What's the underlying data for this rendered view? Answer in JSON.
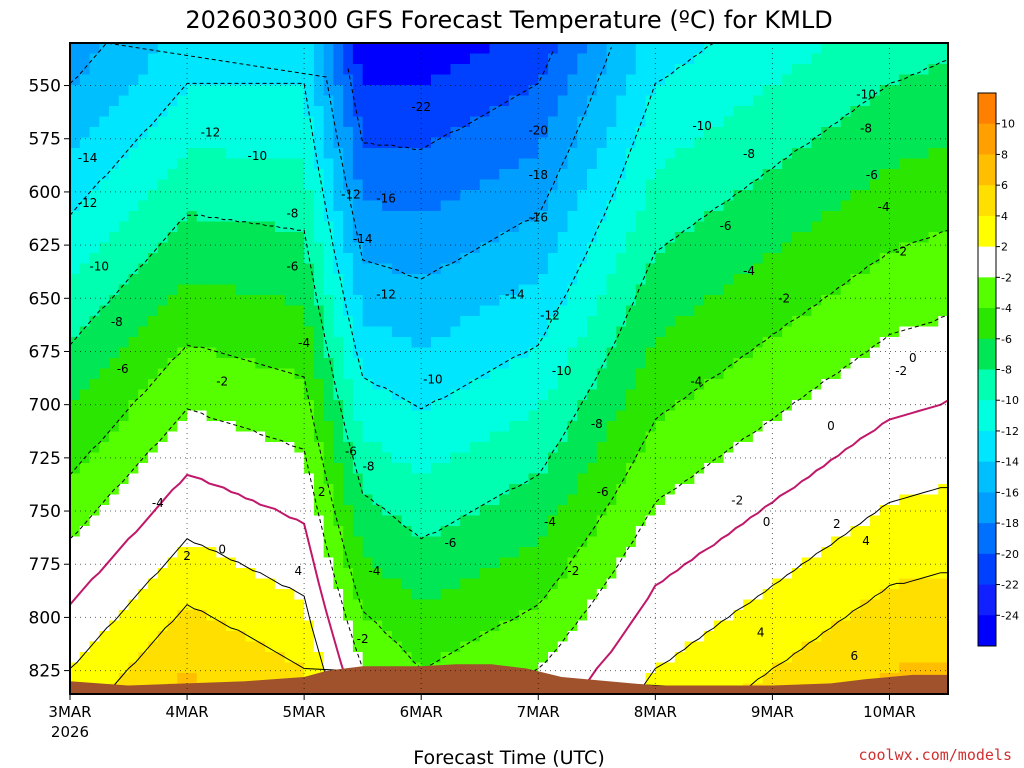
{
  "chart_data": {
    "type": "heatmap",
    "title": "2026030300 GFS Forecast Temperature (ºC) for KMLD",
    "xlabel": "Forecast Time (UTC)",
    "ylabel": "",
    "credit": "coolwx.com/models",
    "x_ticks": [
      "3MAR",
      "4MAR",
      "5MAR",
      "6MAR",
      "7MAR",
      "8MAR",
      "9MAR",
      "10MAR"
    ],
    "x_year": "2026",
    "y_ticks": [
      "550",
      "575",
      "600",
      "625",
      "650",
      "675",
      "700",
      "725",
      "750",
      "775",
      "800",
      "825"
    ],
    "y_values": [
      550,
      575,
      600,
      625,
      650,
      675,
      700,
      725,
      750,
      775,
      800,
      825
    ],
    "ylim": [
      530,
      836
    ],
    "xlim_days": [
      0,
      7.5
    ],
    "colorbar_labels": [
      "10",
      "8",
      "6",
      "4",
      "2",
      "-2",
      "-4",
      "-6",
      "-8",
      "-10",
      "-12",
      "-14",
      "-16",
      "-18",
      "-20",
      "-22",
      "-24"
    ],
    "colorbar_colors": [
      "#ff8000",
      "#ffa000",
      "#ffbf00",
      "#ffdf00",
      "#ffff00",
      "#ffffff",
      "#55ff00",
      "#2ae600",
      "#00e654",
      "#00ffb0",
      "#00ffe0",
      "#00e6ff",
      "#00bfff",
      "#009fff",
      "#0070ff",
      "#0040ff",
      "#1020ff",
      "#0000ff"
    ],
    "temperature_profiles": [
      {
        "x": 0.0,
        "t_550": -16,
        "t_825": 2
      },
      {
        "x": 1.0,
        "t_550": -12,
        "t_825": 6
      },
      {
        "x": 2.0,
        "t_550": -12,
        "t_825": 4
      },
      {
        "x": 2.5,
        "t_550": -22,
        "t_825": -2
      },
      {
        "x": 3.0,
        "t_550": -22,
        "t_825": -4
      },
      {
        "x": 4.0,
        "t_550": -20,
        "t_825": -2
      },
      {
        "x": 5.0,
        "t_550": -12,
        "t_825": 2
      },
      {
        "x": 6.0,
        "t_550": -10,
        "t_825": 4
      },
      {
        "x": 7.0,
        "t_550": -8,
        "t_825": 6
      }
    ],
    "contour_labels": [
      {
        "text": "-10",
        "x": 6.8,
        "y": 556
      },
      {
        "text": "-22",
        "x": 3.0,
        "y": 562
      },
      {
        "text": "-20",
        "x": 4.0,
        "y": 573
      },
      {
        "text": "-12",
        "x": 1.2,
        "y": 574
      },
      {
        "text": "-10",
        "x": 5.4,
        "y": 571
      },
      {
        "text": "-8",
        "x": 6.8,
        "y": 572
      },
      {
        "text": "-8",
        "x": 5.8,
        "y": 584
      },
      {
        "text": "-10",
        "x": 1.6,
        "y": 585
      },
      {
        "text": "-14",
        "x": 0.15,
        "y": 586
      },
      {
        "text": "-18",
        "x": 4.0,
        "y": 594
      },
      {
        "text": "-6",
        "x": 6.85,
        "y": 594
      },
      {
        "text": "-12",
        "x": 2.4,
        "y": 603
      },
      {
        "text": "-16",
        "x": 2.7,
        "y": 605
      },
      {
        "text": "-12",
        "x": 0.15,
        "y": 607
      },
      {
        "text": "-4",
        "x": 6.95,
        "y": 609
      },
      {
        "text": "-8",
        "x": 1.9,
        "y": 612
      },
      {
        "text": "-16",
        "x": 4.0,
        "y": 614
      },
      {
        "text": "-6",
        "x": 5.6,
        "y": 618
      },
      {
        "text": "-14",
        "x": 2.5,
        "y": 624
      },
      {
        "text": "-2",
        "x": 7.1,
        "y": 630
      },
      {
        "text": "-10",
        "x": 0.25,
        "y": 637
      },
      {
        "text": "-6",
        "x": 1.9,
        "y": 637
      },
      {
        "text": "-4",
        "x": 5.8,
        "y": 639
      },
      {
        "text": "-12",
        "x": 2.7,
        "y": 650
      },
      {
        "text": "-14",
        "x": 3.8,
        "y": 650
      },
      {
        "text": "-2",
        "x": 6.1,
        "y": 652
      },
      {
        "text": "-12",
        "x": 4.1,
        "y": 660
      },
      {
        "text": "-8",
        "x": 0.4,
        "y": 663
      },
      {
        "text": "-4",
        "x": 2.0,
        "y": 673
      },
      {
        "text": "-6",
        "x": 0.45,
        "y": 685
      },
      {
        "text": "0",
        "x": 7.2,
        "y": 680
      },
      {
        "text": "-2",
        "x": 7.1,
        "y": 686
      },
      {
        "text": "-10",
        "x": 3.1,
        "y": 690
      },
      {
        "text": "-10",
        "x": 4.2,
        "y": 686
      },
      {
        "text": "-2",
        "x": 1.3,
        "y": 691
      },
      {
        "text": "-4",
        "x": 5.35,
        "y": 691
      },
      {
        "text": "-8",
        "x": 4.5,
        "y": 711
      },
      {
        "text": "0",
        "x": 6.5,
        "y": 712
      },
      {
        "text": "-6",
        "x": 2.4,
        "y": 724
      },
      {
        "text": "-8",
        "x": 2.55,
        "y": 731
      },
      {
        "text": "2",
        "x": 2.15,
        "y": 743
      },
      {
        "text": "-6",
        "x": 4.55,
        "y": 743
      },
      {
        "text": "-2",
        "x": 5.7,
        "y": 747
      },
      {
        "text": "-4",
        "x": 0.75,
        "y": 748
      },
      {
        "text": "0",
        "x": 5.95,
        "y": 757
      },
      {
        "text": "-4",
        "x": 4.1,
        "y": 757
      },
      {
        "text": "2",
        "x": 6.55,
        "y": 758
      },
      {
        "text": "-6",
        "x": 3.25,
        "y": 767
      },
      {
        "text": "4",
        "x": 6.8,
        "y": 766
      },
      {
        "text": "2",
        "x": 1.0,
        "y": 773
      },
      {
        "text": "0",
        "x": 1.3,
        "y": 770
      },
      {
        "text": "4",
        "x": 1.95,
        "y": 780
      },
      {
        "text": "-4",
        "x": 2.6,
        "y": 780
      },
      {
        "text": "-2",
        "x": 4.3,
        "y": 780
      },
      {
        "text": "4",
        "x": 5.9,
        "y": 809
      },
      {
        "text": "-2",
        "x": 2.5,
        "y": 812
      },
      {
        "text": "6",
        "x": 6.7,
        "y": 820
      }
    ]
  }
}
